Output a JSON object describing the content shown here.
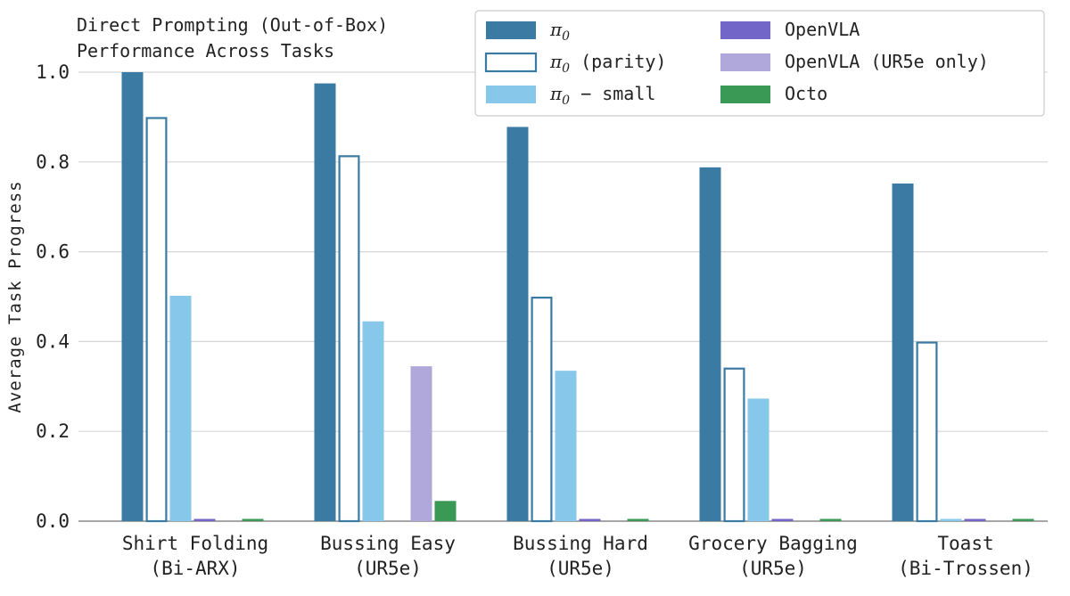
{
  "chart_data": {
    "type": "bar",
    "title": "Direct Prompting (Out-of-Box)",
    "subtitle": "Performance Across Tasks",
    "xlabel": "",
    "ylabel": "Average Task Progress",
    "ylim": [
      0,
      1.0
    ],
    "yticks": [
      "0.0",
      "0.2",
      "0.4",
      "0.6",
      "0.8",
      "1.0"
    ],
    "grid": "horizontal",
    "legend_position": "top-right",
    "categories": [
      {
        "line1": "Shirt Folding",
        "line2": "(Bi-ARX)"
      },
      {
        "line1": "Bussing Easy",
        "line2": "(UR5e)"
      },
      {
        "line1": "Bussing Hard",
        "line2": "(UR5e)"
      },
      {
        "line1": "Grocery Bagging",
        "line2": "(UR5e)"
      },
      {
        "line1": "Toast",
        "line2": "(Bi-Trossen)"
      }
    ],
    "series": [
      {
        "label_base": "π",
        "label_sub": "0",
        "label_rest": "",
        "color": "#3a7aa3",
        "style": "filled",
        "values": [
          1.0,
          0.975,
          0.878,
          0.788,
          0.752
        ]
      },
      {
        "label_base": "π",
        "label_sub": "0",
        "label_rest": " (parity)",
        "color": "#3a7aa3",
        "style": "outline",
        "values": [
          0.9,
          0.815,
          0.5,
          0.342,
          0.4
        ]
      },
      {
        "label_base": "π",
        "label_sub": "0",
        "label_rest": " − small",
        "color": "#87c8ea",
        "style": "filled",
        "values": [
          0.502,
          0.445,
          0.335,
          0.273,
          0.005
        ]
      },
      {
        "label_base": "",
        "label_sub": "",
        "label_rest": "OpenVLA",
        "color": "#7266c8",
        "style": "filled",
        "values": [
          0.005,
          null,
          0.005,
          0.005,
          0.005
        ]
      },
      {
        "label_base": "",
        "label_sub": "",
        "label_rest": "OpenVLA (UR5e only)",
        "color": "#b0a8da",
        "style": "filled",
        "values": [
          null,
          0.345,
          null,
          null,
          null
        ]
      },
      {
        "label_base": "",
        "label_sub": "",
        "label_rest": "Octo",
        "color": "#3a9a55",
        "style": "filled",
        "values": [
          0.005,
          0.045,
          0.005,
          0.005,
          0.005
        ]
      }
    ]
  }
}
